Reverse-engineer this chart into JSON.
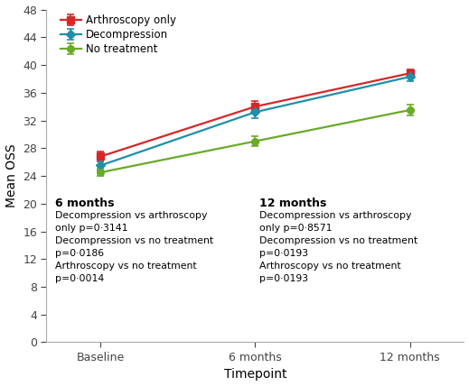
{
  "timepoints": [
    0,
    1,
    2
  ],
  "xtick_labels": [
    "Baseline",
    "6 months",
    "12 months"
  ],
  "xlabel": "Timepoint",
  "ylabel": "Mean OSS",
  "ylim": [
    0,
    48
  ],
  "yticks": [
    0,
    4,
    8,
    12,
    16,
    20,
    24,
    28,
    32,
    36,
    40,
    44,
    48
  ],
  "series": [
    {
      "label": "Arthroscopy only",
      "color": "#d62728",
      "marker": "s",
      "values": [
        26.8,
        34.0,
        38.8
      ],
      "yerr": [
        0.7,
        0.8,
        0.6
      ]
    },
    {
      "label": "Decompression",
      "color": "#1f8faa",
      "marker": "D",
      "values": [
        25.5,
        33.2,
        38.3
      ],
      "yerr": [
        0.7,
        0.9,
        0.7
      ]
    },
    {
      "label": "No treatment",
      "color": "#6aaa28",
      "marker": "o",
      "values": [
        24.5,
        29.0,
        33.5
      ],
      "yerr": [
        0.5,
        0.7,
        0.8
      ]
    }
  ],
  "ann6_title": "6 months",
  "ann6_body": "Decompression vs arthroscopy\nonly p=0·3141\nDecompression vs no treatment\np=0·0186\nArthroscopy vs no treatment\np=0·0014",
  "ann12_title": "12 months",
  "ann12_body": "Decompression vs arthroscopy\nonly p=0·8571\nDecompression vs no treatment\np=0·0193\nArthroscopy vs no treatment\np=0·0193",
  "background_color": "#ffffff",
  "figsize": [
    5.19,
    4.28
  ],
  "dpi": 100
}
